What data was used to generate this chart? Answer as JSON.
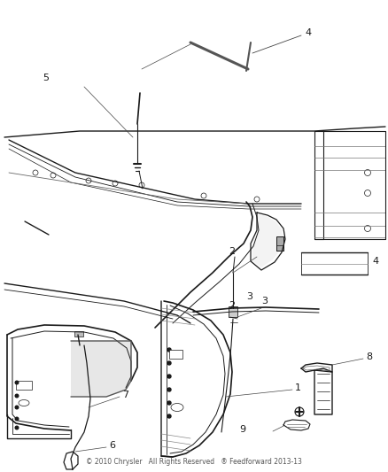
{
  "background_color": "#ffffff",
  "line_color": "#1a1a1a",
  "gray_color": "#888888",
  "light_gray": "#cccccc",
  "dark_gray": "#444444",
  "footer_text": "© 2010 Chrysler   All Rights Reserved   ® Feedforward 2013-13",
  "footer_color": "#555555",
  "footer_fontsize": 5.5
}
